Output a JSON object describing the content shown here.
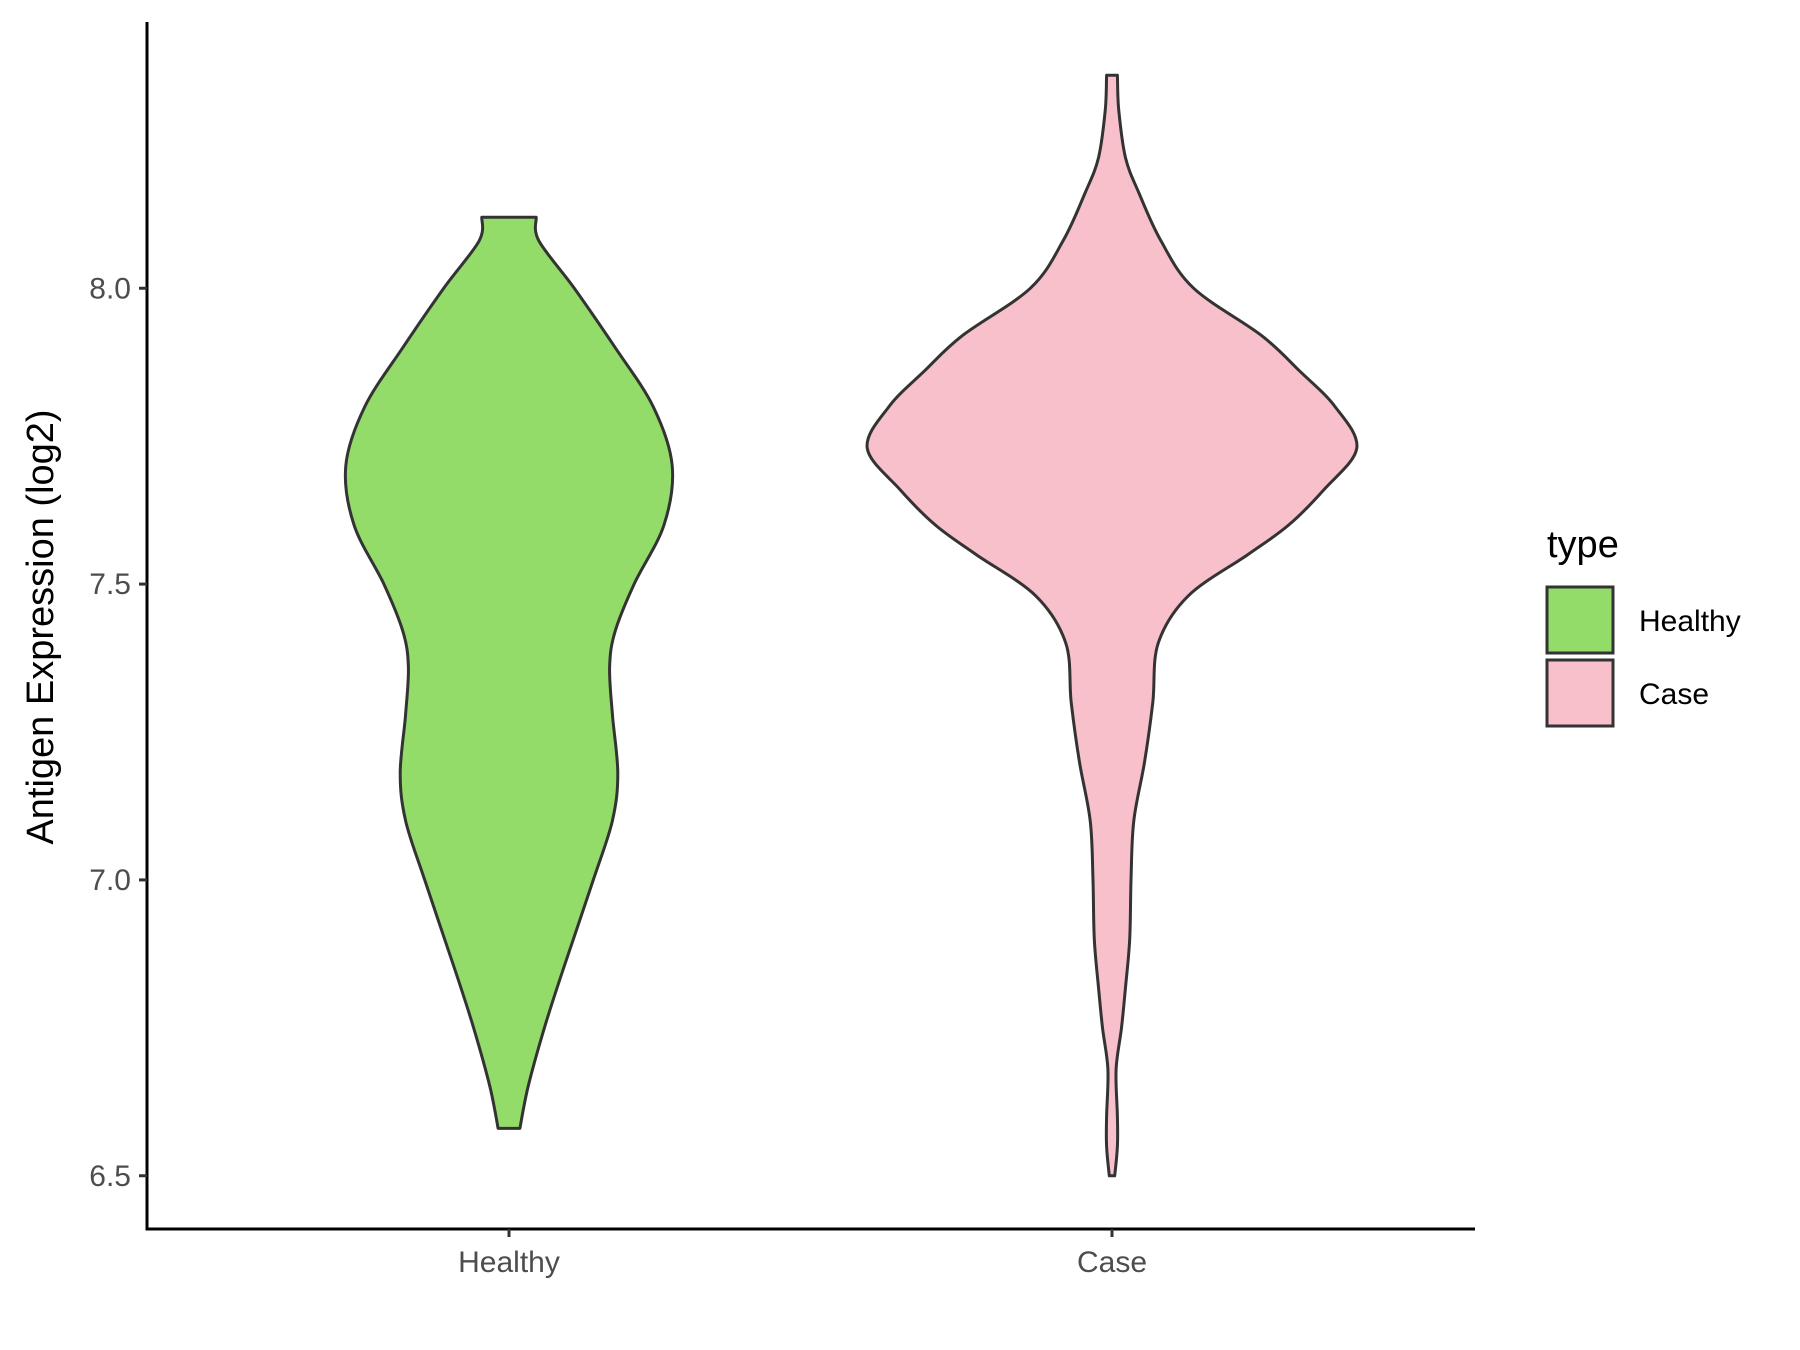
{
  "chart_data": {
    "type": "violin",
    "title": "",
    "xlabel": "",
    "ylabel": "Antigen Expression (log2)",
    "categories": [
      "Healthy",
      "Case"
    ],
    "ylim": [
      6.41,
      8.45
    ],
    "yticks": [
      6.5,
      7.0,
      7.5,
      8.0
    ],
    "ytick_labels": [
      "6.5",
      "7.0",
      "7.5",
      "8.0"
    ],
    "grid": false,
    "legend": {
      "title": "type",
      "placement": "right",
      "items": [
        {
          "label": "Healthy",
          "color": "#93DC6A"
        },
        {
          "label": "Case",
          "color": "#F8C0CB"
        }
      ]
    },
    "series": [
      {
        "name": "Healthy",
        "color": "#93DC6A",
        "y_range": [
          6.58,
          8.12
        ],
        "density_profile": [
          [
            6.58,
            0.04
          ],
          [
            6.65,
            0.07
          ],
          [
            6.75,
            0.13
          ],
          [
            6.85,
            0.2
          ],
          [
            7.0,
            0.31
          ],
          [
            7.1,
            0.38
          ],
          [
            7.18,
            0.4
          ],
          [
            7.28,
            0.38
          ],
          [
            7.36,
            0.37
          ],
          [
            7.42,
            0.39
          ],
          [
            7.5,
            0.46
          ],
          [
            7.6,
            0.57
          ],
          [
            7.7,
            0.6
          ],
          [
            7.8,
            0.53
          ],
          [
            7.9,
            0.39
          ],
          [
            8.0,
            0.24
          ],
          [
            8.08,
            0.11
          ],
          [
            8.12,
            0.1
          ]
        ]
      },
      {
        "name": "Case",
        "color": "#F8C0CB",
        "y_range": [
          6.5,
          8.36
        ],
        "density_profile": [
          [
            6.5,
            0.01
          ],
          [
            6.55,
            0.02
          ],
          [
            6.6,
            0.02
          ],
          [
            6.68,
            0.015
          ],
          [
            6.75,
            0.035
          ],
          [
            6.82,
            0.05
          ],
          [
            6.9,
            0.065
          ],
          [
            7.0,
            0.07
          ],
          [
            7.1,
            0.08
          ],
          [
            7.2,
            0.12
          ],
          [
            7.3,
            0.15
          ],
          [
            7.4,
            0.17
          ],
          [
            7.48,
            0.28
          ],
          [
            7.55,
            0.5
          ],
          [
            7.6,
            0.65
          ],
          [
            7.66,
            0.78
          ],
          [
            7.73,
            0.9
          ],
          [
            7.8,
            0.82
          ],
          [
            7.86,
            0.69
          ],
          [
            7.92,
            0.55
          ],
          [
            8.0,
            0.3
          ],
          [
            8.08,
            0.18
          ],
          [
            8.16,
            0.1
          ],
          [
            8.22,
            0.05
          ],
          [
            8.3,
            0.025
          ],
          [
            8.36,
            0.02
          ]
        ]
      }
    ]
  }
}
